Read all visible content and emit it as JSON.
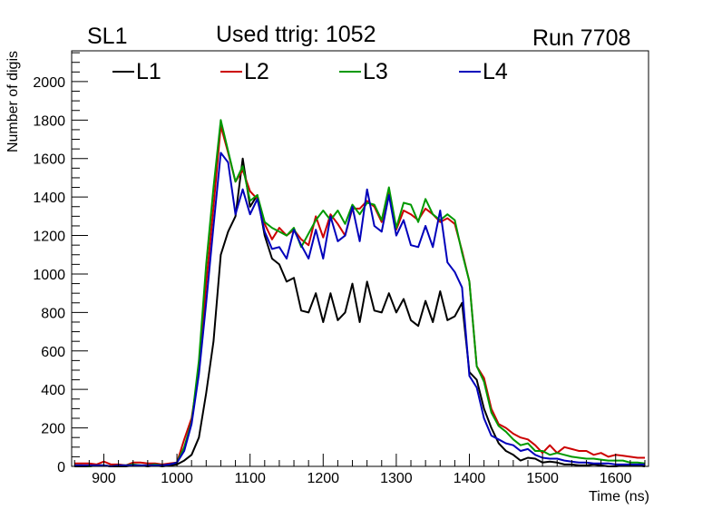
{
  "header": {
    "left": "SL1",
    "center": "Used ttrig: 1052",
    "right": "Run 7708"
  },
  "chart_data": {
    "type": "line",
    "xlabel": "Time (ns)",
    "ylabel": "Number of digis",
    "xlim": [
      856,
      1645
    ],
    "ylim": [
      0,
      2160
    ],
    "xticks": [
      900,
      1000,
      1100,
      1200,
      1300,
      1400,
      1500,
      1600
    ],
    "yticks": [
      0,
      200,
      400,
      600,
      800,
      1000,
      1200,
      1400,
      1600,
      1800,
      2000
    ],
    "grid": false,
    "legend_position": "top-left",
    "x": [
      860,
      870,
      880,
      890,
      900,
      910,
      920,
      930,
      940,
      950,
      960,
      970,
      980,
      990,
      1000,
      1010,
      1020,
      1030,
      1040,
      1050,
      1060,
      1070,
      1080,
      1090,
      1100,
      1110,
      1120,
      1130,
      1140,
      1150,
      1160,
      1170,
      1180,
      1190,
      1200,
      1210,
      1220,
      1230,
      1240,
      1250,
      1260,
      1270,
      1280,
      1290,
      1300,
      1310,
      1320,
      1330,
      1340,
      1350,
      1360,
      1370,
      1380,
      1390,
      1400,
      1410,
      1420,
      1430,
      1440,
      1450,
      1460,
      1470,
      1480,
      1490,
      1500,
      1510,
      1520,
      1530,
      1540,
      1550,
      1560,
      1570,
      1580,
      1590,
      1600,
      1610,
      1620,
      1630,
      1640
    ],
    "series": [
      {
        "name": "L1",
        "color": "#000000",
        "values": [
          0,
          0,
          0,
          5,
          5,
          0,
          0,
          0,
          5,
          5,
          0,
          5,
          0,
          5,
          10,
          30,
          60,
          150,
          380,
          650,
          1100,
          1220,
          1300,
          1600,
          1350,
          1410,
          1200,
          1080,
          1050,
          960,
          980,
          810,
          800,
          900,
          750,
          900,
          760,
          800,
          950,
          750,
          960,
          810,
          800,
          900,
          800,
          870,
          760,
          730,
          860,
          750,
          910,
          760,
          780,
          850,
          490,
          450,
          300,
          200,
          120,
          80,
          60,
          30,
          45,
          40,
          20,
          25,
          20,
          10,
          10,
          5,
          5,
          10,
          5,
          0,
          0,
          5,
          5,
          5,
          0
        ]
      },
      {
        "name": "L2",
        "color": "#cc0000",
        "values": [
          15,
          15,
          15,
          10,
          25,
          10,
          10,
          5,
          20,
          20,
          15,
          15,
          10,
          15,
          20,
          140,
          250,
          500,
          950,
          1350,
          1770,
          1630,
          1480,
          1540,
          1430,
          1390,
          1260,
          1180,
          1240,
          1200,
          1230,
          1180,
          1150,
          1300,
          1190,
          1310,
          1260,
          1200,
          1340,
          1340,
          1380,
          1350,
          1270,
          1420,
          1230,
          1330,
          1310,
          1280,
          1340,
          1310,
          1270,
          1290,
          1260,
          1120,
          960,
          520,
          460,
          300,
          220,
          200,
          170,
          150,
          140,
          110,
          70,
          110,
          70,
          100,
          90,
          80,
          80,
          60,
          70,
          50,
          60,
          55,
          50,
          45,
          45
        ]
      },
      {
        "name": "L3",
        "color": "#009900",
        "values": [
          5,
          5,
          0,
          5,
          5,
          0,
          5,
          5,
          10,
          5,
          5,
          10,
          5,
          10,
          20,
          100,
          230,
          550,
          1050,
          1450,
          1800,
          1640,
          1480,
          1560,
          1380,
          1410,
          1270,
          1240,
          1220,
          1200,
          1240,
          1140,
          1210,
          1280,
          1330,
          1280,
          1330,
          1260,
          1360,
          1310,
          1370,
          1360,
          1280,
          1450,
          1240,
          1370,
          1360,
          1270,
          1390,
          1310,
          1280,
          1310,
          1280,
          1110,
          960,
          520,
          440,
          280,
          210,
          180,
          140,
          110,
          120,
          80,
          80,
          60,
          70,
          60,
          50,
          45,
          40,
          40,
          35,
          30,
          30,
          30,
          20,
          20,
          15
        ]
      },
      {
        "name": "L4",
        "color": "#0000bb",
        "values": [
          5,
          5,
          5,
          5,
          5,
          0,
          5,
          5,
          5,
          5,
          5,
          5,
          5,
          10,
          20,
          80,
          220,
          480,
          850,
          1250,
          1630,
          1580,
          1310,
          1440,
          1310,
          1390,
          1220,
          1130,
          1140,
          1080,
          1230,
          1150,
          1080,
          1230,
          1080,
          1300,
          1170,
          1200,
          1350,
          1170,
          1440,
          1250,
          1220,
          1410,
          1200,
          1280,
          1150,
          1140,
          1250,
          1140,
          1330,
          1060,
          1010,
          930,
          470,
          410,
          250,
          160,
          140,
          120,
          110,
          80,
          90,
          60,
          45,
          40,
          40,
          30,
          25,
          20,
          20,
          15,
          15,
          15,
          10,
          10,
          10,
          10,
          10
        ]
      }
    ]
  }
}
